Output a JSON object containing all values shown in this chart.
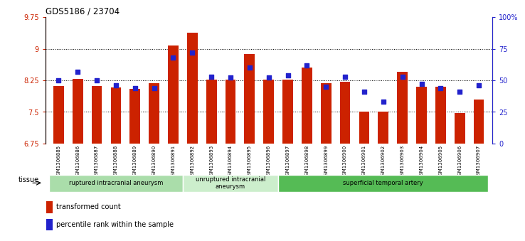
{
  "title": "GDS5186 / 23704",
  "samples": [
    "GSM1306885",
    "GSM1306886",
    "GSM1306887",
    "GSM1306888",
    "GSM1306889",
    "GSM1306890",
    "GSM1306891",
    "GSM1306892",
    "GSM1306893",
    "GSM1306894",
    "GSM1306895",
    "GSM1306896",
    "GSM1306897",
    "GSM1306898",
    "GSM1306899",
    "GSM1306900",
    "GSM1306901",
    "GSM1306902",
    "GSM1306903",
    "GSM1306904",
    "GSM1306905",
    "GSM1306906",
    "GSM1306907"
  ],
  "bar_values": [
    8.12,
    8.28,
    8.12,
    8.08,
    8.05,
    8.18,
    9.07,
    9.38,
    8.27,
    8.27,
    8.88,
    8.27,
    8.27,
    8.56,
    8.18,
    8.22,
    7.5,
    7.5,
    8.46,
    8.1,
    8.1,
    7.48,
    7.8
  ],
  "percentile_values": [
    50,
    57,
    50,
    46,
    44,
    44,
    68,
    72,
    53,
    52,
    60,
    52,
    54,
    62,
    45,
    53,
    41,
    33,
    53,
    47,
    44,
    41,
    46
  ],
  "bar_color": "#cc2200",
  "dot_color": "#2222cc",
  "ylim_left": [
    6.75,
    9.75
  ],
  "ylim_right": [
    0,
    100
  ],
  "yticks_left": [
    6.75,
    7.5,
    8.25,
    9.0,
    9.75
  ],
  "ytick_labels_left": [
    "6.75",
    "7.5",
    "8.25",
    "9",
    "9.75"
  ],
  "yticks_right": [
    0,
    25,
    50,
    75,
    100
  ],
  "ytick_labels_right": [
    "0",
    "25",
    "50",
    "75",
    "100%"
  ],
  "dotted_lines": [
    7.5,
    8.25,
    9.0
  ],
  "group_boundaries": [
    {
      "start": 0,
      "end": 7,
      "label": "ruptured intracranial aneurysm",
      "color": "#aaddaa"
    },
    {
      "start": 7,
      "end": 12,
      "label": "unruptured intracranial\naneurysm",
      "color": "#cceecc"
    },
    {
      "start": 12,
      "end": 23,
      "label": "superficial temporal artery",
      "color": "#55bb55"
    }
  ],
  "tissue_label": "tissue",
  "legend_bar_label": "transformed count",
  "legend_dot_label": "percentile rank within the sample",
  "background_color": "#ffffff",
  "bar_width": 0.55
}
